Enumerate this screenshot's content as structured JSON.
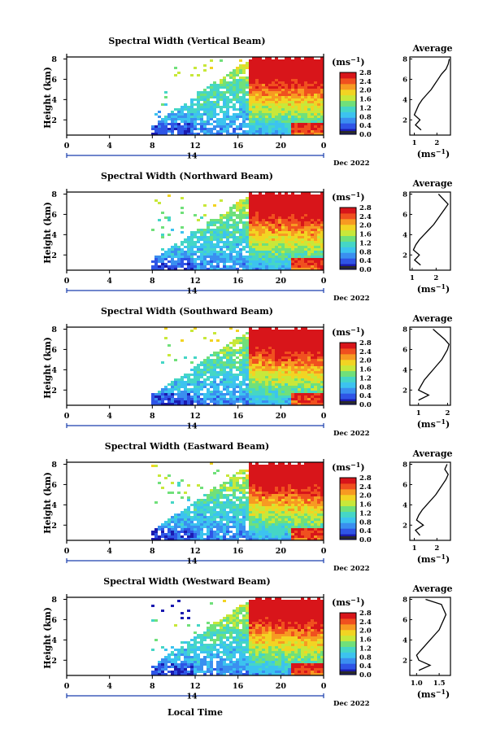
{
  "figure": {
    "xlabel": "Local Time",
    "ylabel": "Height (km)",
    "date_label": "Dec 2022",
    "day_label": "14",
    "colorbar_unit": "(ms",
    "colorbar_unit_exp": "−1",
    "colorbar_unit_close": ")",
    "avg_title": "Average",
    "avg_unit": "(ms",
    "avg_unit_exp": "−1",
    "avg_unit_close": ")",
    "colors": {
      "scale": [
        "#1b1bb0",
        "#2f55e6",
        "#3a8ff0",
        "#3cc3ef",
        "#45d6c6",
        "#70e07a",
        "#c8e83a",
        "#f2d423",
        "#f79a22",
        "#f0501f",
        "#d8151a"
      ],
      "colorbar_low_band": "#2a2a2a",
      "axis": "#000000",
      "day_marker": "#1b3fae"
    }
  },
  "chart_data": [
    {
      "type": "heatmap",
      "title": "Spectral Width (Vertical Beam)",
      "x_ticks": [
        "0",
        "4",
        "8",
        "12",
        "16",
        "20",
        "0"
      ],
      "y_ticks": [
        "2",
        "4",
        "6",
        "8"
      ],
      "x_range_hours": [
        0,
        24
      ],
      "y_range_km": [
        0.5,
        8.2
      ],
      "colorbar_ticks": [
        "0.0",
        "0.4",
        "0.8",
        "1.2",
        "1.6",
        "2.0",
        "2.4",
        "2.8"
      ],
      "colorbar_range": [
        0.0,
        2.8
      ],
      "data_starts_hour": 8,
      "profile": {
        "x_ticks": [
          "1",
          "2"
        ],
        "x_range": [
          0.8,
          2.6
        ],
        "y_ticks": [
          "2",
          "4",
          "6",
          "8"
        ],
        "height_km": [
          1.0,
          1.5,
          2.0,
          2.5,
          3.0,
          3.5,
          4.0,
          4.5,
          5.0,
          5.5,
          6.0,
          6.5,
          7.0,
          7.5,
          8.0
        ],
        "width_ms": [
          1.3,
          1.05,
          1.25,
          1.0,
          1.1,
          1.2,
          1.35,
          1.55,
          1.75,
          1.9,
          2.05,
          2.2,
          2.4,
          2.5,
          2.55
        ]
      }
    },
    {
      "type": "heatmap",
      "title": "Spectral Width (Northward Beam)",
      "x_ticks": [
        "0",
        "4",
        "8",
        "12",
        "16",
        "20",
        "0"
      ],
      "y_ticks": [
        "2",
        "4",
        "6",
        "8"
      ],
      "x_range_hours": [
        0,
        24
      ],
      "y_range_km": [
        0.5,
        8.2
      ],
      "colorbar_ticks": [
        "0.0",
        "0.4",
        "0.8",
        "1.2",
        "1.6",
        "2.0",
        "2.4",
        "2.8"
      ],
      "colorbar_range": [
        0.0,
        2.8
      ],
      "data_starts_hour": 8,
      "profile": {
        "x_ticks": [
          "1",
          "2"
        ],
        "x_range": [
          0.9,
          2.6
        ],
        "y_ticks": [
          "2",
          "4",
          "6",
          "8"
        ],
        "height_km": [
          1.0,
          1.5,
          2.0,
          2.5,
          3.0,
          3.5,
          4.0,
          4.5,
          5.0,
          5.5,
          6.0,
          6.5,
          7.0,
          7.5,
          8.0
        ],
        "width_ms": [
          1.35,
          1.1,
          1.3,
          1.05,
          1.15,
          1.3,
          1.5,
          1.7,
          1.9,
          2.05,
          2.2,
          2.35,
          2.5,
          2.3,
          2.1
        ]
      }
    },
    {
      "type": "heatmap",
      "title": "Spectral Width (Southward Beam)",
      "x_ticks": [
        "0",
        "4",
        "8",
        "12",
        "16",
        "20",
        "0"
      ],
      "y_ticks": [
        "2",
        "4",
        "6",
        "8"
      ],
      "x_range_hours": [
        0,
        24
      ],
      "y_range_km": [
        0.5,
        8.2
      ],
      "colorbar_ticks": [
        "0.0",
        "0.4",
        "0.8",
        "1.2",
        "1.6",
        "2.0",
        "2.4",
        "2.8"
      ],
      "colorbar_range": [
        0.0,
        2.8
      ],
      "data_starts_hour": 8,
      "profile": {
        "x_ticks": [
          "1",
          "2"
        ],
        "x_range": [
          0.7,
          2.1
        ],
        "y_ticks": [
          "2",
          "4",
          "6",
          "8"
        ],
        "height_km": [
          1.0,
          1.5,
          2.0,
          2.5,
          3.0,
          3.5,
          4.0,
          4.5,
          5.0,
          5.5,
          6.0,
          6.5,
          7.0,
          7.5,
          8.0
        ],
        "width_ms": [
          1.0,
          1.35,
          1.0,
          1.1,
          1.2,
          1.35,
          1.5,
          1.65,
          1.8,
          1.9,
          2.0,
          2.05,
          1.9,
          1.7,
          1.5
        ]
      }
    },
    {
      "type": "heatmap",
      "title": "Spectral Width (Eastward Beam)",
      "x_ticks": [
        "0",
        "4",
        "8",
        "12",
        "16",
        "20",
        "0"
      ],
      "y_ticks": [
        "2",
        "4",
        "6",
        "8"
      ],
      "x_range_hours": [
        0,
        24
      ],
      "y_range_km": [
        0.5,
        8.2
      ],
      "colorbar_ticks": [
        "0.0",
        "0.4",
        "0.8",
        "1.2",
        "1.6",
        "2.0",
        "2.4",
        "2.8"
      ],
      "colorbar_range": [
        0.0,
        2.8
      ],
      "data_starts_hour": 8,
      "profile": {
        "x_ticks": [
          "1",
          "2"
        ],
        "x_range": [
          0.8,
          2.6
        ],
        "y_ticks": [
          "2",
          "4",
          "6",
          "8"
        ],
        "height_km": [
          1.0,
          1.5,
          2.0,
          2.5,
          3.0,
          3.5,
          4.0,
          4.5,
          5.0,
          5.5,
          6.0,
          6.5,
          7.0,
          7.5,
          8.0
        ],
        "width_ms": [
          1.25,
          1.05,
          1.4,
          1.1,
          1.2,
          1.35,
          1.55,
          1.75,
          1.95,
          2.1,
          2.25,
          2.4,
          2.5,
          2.35,
          2.45
        ]
      }
    },
    {
      "type": "heatmap",
      "title": "Spectral Width (Westward Beam)",
      "x_ticks": [
        "0",
        "4",
        "8",
        "12",
        "16",
        "20",
        "0"
      ],
      "y_ticks": [
        "2",
        "4",
        "6",
        "8"
      ],
      "x_range_hours": [
        0,
        24
      ],
      "y_range_km": [
        0.5,
        8.2
      ],
      "colorbar_ticks": [
        "0.0",
        "0.4",
        "0.8",
        "1.2",
        "1.6",
        "2.0",
        "2.4",
        "2.8"
      ],
      "colorbar_range": [
        0.0,
        2.8
      ],
      "data_starts_hour": 8,
      "profile": {
        "x_ticks": [
          "1.0",
          "1.5"
        ],
        "x_range": [
          0.85,
          1.75
        ],
        "y_ticks": [
          "2",
          "4",
          "6",
          "8"
        ],
        "height_km": [
          1.0,
          1.5,
          2.0,
          2.5,
          3.0,
          3.5,
          4.0,
          4.5,
          5.0,
          5.5,
          6.0,
          6.5,
          7.0,
          7.5,
          8.0
        ],
        "width_ms": [
          1.05,
          1.3,
          1.05,
          1.0,
          1.1,
          1.2,
          1.3,
          1.4,
          1.5,
          1.55,
          1.6,
          1.65,
          1.6,
          1.55,
          1.2
        ]
      }
    }
  ]
}
